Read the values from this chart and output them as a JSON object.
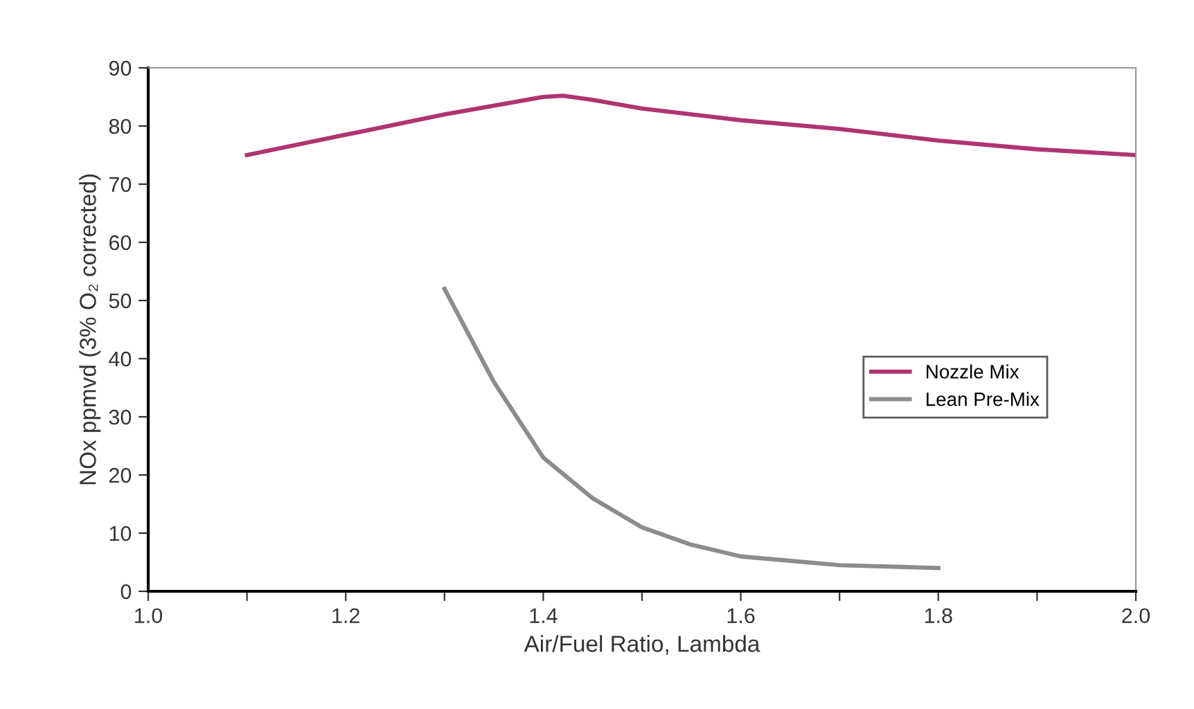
{
  "chart_data": {
    "type": "line",
    "xlabel": "Air/Fuel Ratio, Lambda",
    "ylabel": "NOx ppmvd (3% O₂ corrected)",
    "series": [
      {
        "name": "Nozzle Mix",
        "color": "#b03472",
        "x": [
          1.1,
          1.2,
          1.3,
          1.4,
          1.42,
          1.45,
          1.5,
          1.6,
          1.7,
          1.8,
          1.9,
          2.0
        ],
        "values": [
          75,
          78.5,
          82,
          85,
          85.2,
          84.5,
          83,
          81,
          79.5,
          77.5,
          76,
          75
        ]
      },
      {
        "name": "Lean Pre-Mix",
        "color": "#8c8c8c",
        "x": [
          1.3,
          1.35,
          1.4,
          1.45,
          1.5,
          1.55,
          1.6,
          1.7,
          1.8
        ],
        "values": [
          52,
          36,
          23,
          16,
          11,
          8,
          6,
          4.5,
          4
        ]
      }
    ],
    "xlim": [
      1.0,
      2.0
    ],
    "ylim": [
      0,
      90
    ],
    "xticks": [
      {
        "value": 1.0,
        "label": "1.0"
      },
      {
        "value": 1.1,
        "label": null
      },
      {
        "value": 1.2,
        "label": "1.2"
      },
      {
        "value": 1.3,
        "label": null
      },
      {
        "value": 1.4,
        "label": "1.4"
      },
      {
        "value": 1.5,
        "label": null
      },
      {
        "value": 1.6,
        "label": "1.6"
      },
      {
        "value": 1.7,
        "label": null
      },
      {
        "value": 1.8,
        "label": "1.8"
      },
      {
        "value": 1.9,
        "label": null
      },
      {
        "value": 2.0,
        "label": "2.0"
      }
    ],
    "yticks": [
      0,
      10,
      20,
      30,
      40,
      50,
      60,
      70,
      80,
      90
    ],
    "legend": "center right",
    "grid": false,
    "marker": "none",
    "line_style": "solid"
  }
}
